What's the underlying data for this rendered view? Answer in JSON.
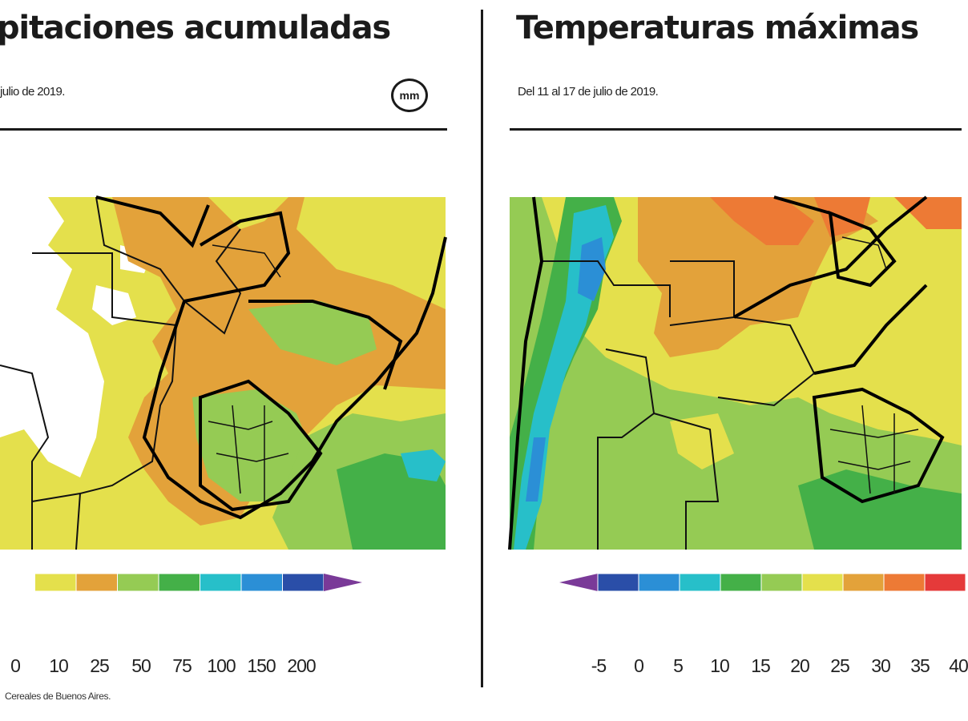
{
  "left_panel": {
    "title": "pitaciones acumuladas",
    "subtitle": "julio de 2019.",
    "unit": "mm",
    "legend": {
      "ticks": [
        "0",
        "10",
        "25",
        "50",
        "75",
        "100",
        "150",
        "200"
      ],
      "colors": [
        "#ffffff",
        "#e4e04c",
        "#e3a23a",
        "#95cb54",
        "#44b048",
        "#27bfc9",
        "#2b8fd6",
        "#2a4ea8",
        "#7a3a98"
      ]
    },
    "source": "Cereales de Buenos Aires."
  },
  "right_panel": {
    "title": "Temperaturas máximas",
    "subtitle": "Del 11 al 17 de julio de 2019.",
    "legend": {
      "ticks": [
        "-5",
        "0",
        "5",
        "10",
        "15",
        "20",
        "25",
        "30",
        "35",
        "40"
      ],
      "colors": [
        "#7a3a98",
        "#2a4ea8",
        "#2b8fd6",
        "#27bfc9",
        "#44b048",
        "#95cb54",
        "#e4e04c",
        "#e3a23a",
        "#ed7a35",
        "#e53a3a"
      ]
    }
  }
}
